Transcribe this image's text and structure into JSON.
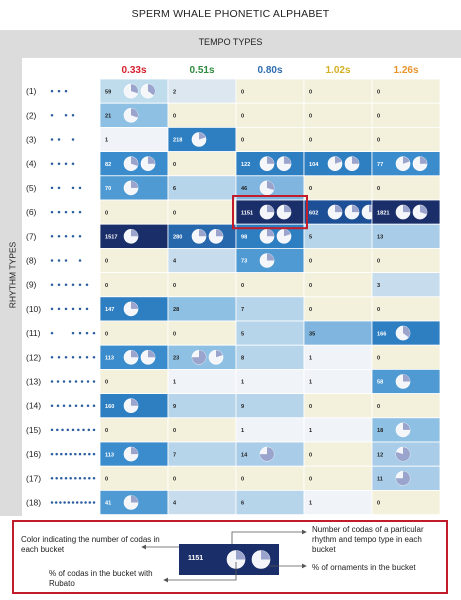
{
  "page": {
    "title": "SPERM WHALE PHONETIC ALPHABET"
  },
  "colors": {
    "dark_navy": "#1a2f6a",
    "highlight_border": "#c21c2a",
    "pale_cell": "#f3f1dc"
  },
  "chart_data": {
    "type": "heatmap",
    "title": "SPERM WHALE PHONETIC ALPHABET",
    "xlabel": "TEMPO TYPES",
    "ylabel": "RHYTHM TYPES",
    "columns": [
      {
        "label": "0.33s",
        "color": "#d4202c"
      },
      {
        "label": "0.51s",
        "color": "#2e8a3d"
      },
      {
        "label": "0.80s",
        "color": "#2f6cb0"
      },
      {
        "label": "1.02s",
        "color": "#d4b023"
      },
      {
        "label": "1.26s",
        "color": "#e8932c"
      }
    ],
    "rows": [
      {
        "label": "(1)",
        "dots": 3,
        "gaps": [
          1,
          1
        ]
      },
      {
        "label": "(2)",
        "dots": 3,
        "gaps": [
          2,
          1
        ]
      },
      {
        "label": "(3)",
        "dots": 3,
        "gaps": [
          1,
          2
        ]
      },
      {
        "label": "(4)",
        "dots": 4,
        "gaps": [
          1,
          1,
          1
        ]
      },
      {
        "label": "(5)",
        "dots": 4,
        "gaps": [
          1,
          2,
          1
        ]
      },
      {
        "label": "(6)",
        "dots": 5,
        "gaps": [
          1,
          1,
          1,
          1
        ]
      },
      {
        "label": "(7)",
        "dots": 5,
        "gaps": [
          1,
          1,
          1,
          1
        ]
      },
      {
        "label": "(8)",
        "dots": 4,
        "gaps": [
          1,
          1,
          2
        ]
      },
      {
        "label": "(9)",
        "dots": 6,
        "gaps": [
          1,
          1,
          1,
          1,
          1
        ]
      },
      {
        "label": "(10)",
        "dots": 6,
        "gaps": [
          1,
          1,
          1,
          1,
          1
        ]
      },
      {
        "label": "(11)",
        "dots": 5,
        "gaps": [
          3,
          1,
          1,
          1
        ]
      },
      {
        "label": "(12)",
        "dots": 7,
        "gaps": [
          1,
          1,
          1,
          1,
          1,
          1
        ]
      },
      {
        "label": "(13)",
        "dots": 8,
        "gaps": [
          1,
          1,
          1,
          1,
          1,
          1,
          1
        ]
      },
      {
        "label": "(14)",
        "dots": 8,
        "gaps": [
          1,
          1,
          1,
          1,
          1,
          1,
          1
        ]
      },
      {
        "label": "(15)",
        "dots": 9,
        "gaps": [
          1,
          1,
          1,
          1,
          1,
          1,
          1,
          1
        ]
      },
      {
        "label": "(16)",
        "dots": 10,
        "gaps": [
          1,
          1,
          1,
          1,
          1,
          1,
          1,
          1,
          1
        ]
      },
      {
        "label": "(17)",
        "dots": 10,
        "gaps": [
          1,
          1,
          1,
          1,
          1,
          1,
          1,
          1,
          1
        ]
      },
      {
        "label": "(18)",
        "dots": 11,
        "gaps": [
          1,
          1,
          1,
          1,
          1,
          1,
          1,
          1,
          1,
          1
        ]
      }
    ],
    "cells": [
      [
        {
          "v": 59,
          "c": "#bfdced",
          "p": [
            0.3,
            0.35
          ]
        },
        {
          "v": 2,
          "c": "#dce7f0"
        },
        {
          "v": 0,
          "c": "#f3f1dc"
        },
        {
          "v": 0,
          "c": "#f3f1dc"
        },
        {
          "v": 0,
          "c": "#f3f1dc"
        }
      ],
      [
        {
          "v": 21,
          "c": "#8ec0e3",
          "p": [
            0.3
          ]
        },
        {
          "v": 0,
          "c": "#f3f1dc"
        },
        {
          "v": 0,
          "c": "#f3f1dc"
        },
        {
          "v": 0,
          "c": "#f3f1dc"
        },
        {
          "v": 0,
          "c": "#f3f1dc"
        }
      ],
      [
        {
          "v": 1,
          "c": "#f0f4f8"
        },
        {
          "v": 218,
          "c": "#2e7fc2",
          "p": [
            0.2
          ]
        },
        {
          "v": 0,
          "c": "#f3f1dc"
        },
        {
          "v": 0,
          "c": "#f3f1dc"
        },
        {
          "v": 0,
          "c": "#f3f1dc"
        }
      ],
      [
        {
          "v": 82,
          "c": "#3b8ccc",
          "p": [
            0.3,
            0.25
          ]
        },
        {
          "v": 0,
          "c": "#f3f1dc"
        },
        {
          "v": 122,
          "c": "#2e7fc2",
          "p": [
            0.25,
            0.25
          ]
        },
        {
          "v": 104,
          "c": "#2e7fc2",
          "p": [
            0.2,
            0.25
          ]
        },
        {
          "v": 77,
          "c": "#3b8ccc",
          "p": [
            0.2,
            0.25
          ]
        }
      ],
      [
        {
          "v": 70,
          "c": "#4f9ad3",
          "p": [
            0.25
          ]
        },
        {
          "v": 6,
          "c": "#b6d4ea"
        },
        {
          "v": 46,
          "c": "#7fb5df",
          "p": [
            0.3
          ]
        },
        {
          "v": 0,
          "c": "#f3f1dc"
        },
        {
          "v": 0,
          "c": "#f3f1dc"
        }
      ],
      [
        {
          "v": 0,
          "c": "#f3f1dc"
        },
        {
          "v": 0,
          "c": "#f3f1dc"
        },
        {
          "v": 1151,
          "c": "#1a2f6a",
          "p": [
            0.25,
            0.25
          ]
        },
        {
          "v": 602,
          "c": "#1d4f96",
          "p": [
            0.25,
            0.25,
            0.25
          ]
        },
        {
          "v": 1821,
          "c": "#1a2f6a",
          "p": [
            0.25,
            0.3
          ]
        }
      ],
      [
        {
          "v": 1517,
          "c": "#1a2f6a",
          "p": [
            0.25
          ]
        },
        {
          "v": 280,
          "c": "#2768ad",
          "p": [
            0.25,
            0.25
          ]
        },
        {
          "v": 98,
          "c": "#2e7fc2",
          "p": [
            0.25,
            0.2
          ]
        },
        {
          "v": 5,
          "c": "#b6d4ea"
        },
        {
          "v": 13,
          "c": "#a9cde8"
        }
      ],
      [
        {
          "v": 0,
          "c": "#f3f1dc"
        },
        {
          "v": 4,
          "c": "#c7dcec"
        },
        {
          "v": 73,
          "c": "#4f9ad3",
          "p": [
            0.25
          ]
        },
        {
          "v": 0,
          "c": "#f3f1dc"
        },
        {
          "v": 0,
          "c": "#f3f1dc"
        }
      ],
      [
        {
          "v": 0,
          "c": "#f3f1dc"
        },
        {
          "v": 0,
          "c": "#f3f1dc"
        },
        {
          "v": 0,
          "c": "#f3f1dc"
        },
        {
          "v": 0,
          "c": "#f3f1dc"
        },
        {
          "v": 3,
          "c": "#c7dcec"
        }
      ],
      [
        {
          "v": 147,
          "c": "#2e7fc2",
          "p": [
            0.25
          ]
        },
        {
          "v": 28,
          "c": "#8ec0e3"
        },
        {
          "v": 7,
          "c": "#b6d4ea"
        },
        {
          "v": 0,
          "c": "#f3f1dc"
        },
        {
          "v": 0,
          "c": "#f3f1dc"
        }
      ],
      [
        {
          "v": 0,
          "c": "#f3f1dc"
        },
        {
          "v": 0,
          "c": "#f3f1dc"
        },
        {
          "v": 5,
          "c": "#b6d4ea"
        },
        {
          "v": 35,
          "c": "#7fb5df"
        },
        {
          "v": 166,
          "c": "#2e7fc2",
          "p": [
            0.35
          ]
        }
      ],
      [
        {
          "v": 113,
          "c": "#3b8ccc",
          "p": [
            0.25,
            0.25
          ]
        },
        {
          "v": 23,
          "c": "#8ec0e3",
          "p": [
            0.75,
            0.2
          ]
        },
        {
          "v": 8,
          "c": "#b6d4ea"
        },
        {
          "v": 1,
          "c": "#f0f4f8"
        },
        {
          "v": 0,
          "c": "#f3f1dc"
        }
      ],
      [
        {
          "v": 0,
          "c": "#f3f1dc"
        },
        {
          "v": 1,
          "c": "#f0f4f8"
        },
        {
          "v": 1,
          "c": "#f0f4f8"
        },
        {
          "v": 1,
          "c": "#f0f4f8"
        },
        {
          "v": 58,
          "c": "#4f9ad3",
          "p": [
            0.25
          ]
        }
      ],
      [
        {
          "v": 160,
          "c": "#2e7fc2",
          "p": [
            0.25
          ]
        },
        {
          "v": 9,
          "c": "#b6d4ea"
        },
        {
          "v": 9,
          "c": "#b6d4ea"
        },
        {
          "v": 0,
          "c": "#f3f1dc"
        },
        {
          "v": 0,
          "c": "#f3f1dc"
        }
      ],
      [
        {
          "v": 0,
          "c": "#f3f1dc"
        },
        {
          "v": 0,
          "c": "#f3f1dc"
        },
        {
          "v": 1,
          "c": "#f0f4f8"
        },
        {
          "v": 1,
          "c": "#f0f4f8"
        },
        {
          "v": 18,
          "c": "#8ec0e3",
          "p": [
            0.25
          ]
        }
      ],
      [
        {
          "v": 113,
          "c": "#3b8ccc",
          "p": [
            0.25
          ]
        },
        {
          "v": 7,
          "c": "#b6d4ea"
        },
        {
          "v": 14,
          "c": "#a9cde8",
          "p": [
            0.75
          ]
        },
        {
          "v": 0,
          "c": "#f3f1dc"
        },
        {
          "v": 12,
          "c": "#a9cde8",
          "p": [
            0.8
          ]
        }
      ],
      [
        {
          "v": 0,
          "c": "#f3f1dc"
        },
        {
          "v": 0,
          "c": "#f3f1dc"
        },
        {
          "v": 0,
          "c": "#f3f1dc"
        },
        {
          "v": 0,
          "c": "#f3f1dc"
        },
        {
          "v": 11,
          "c": "#a9cde8",
          "p": [
            0.75
          ]
        }
      ],
      [
        {
          "v": 41,
          "c": "#4f9ad3",
          "p": [
            0.25
          ]
        },
        {
          "v": 4,
          "c": "#c7dcec"
        },
        {
          "v": 6,
          "c": "#b6d4ea"
        },
        {
          "v": 1,
          "c": "#f0f4f8"
        },
        {
          "v": 0,
          "c": "#f3f1dc"
        }
      ]
    ],
    "highlight": {
      "row": 5,
      "col": 2
    }
  },
  "legend": {
    "color_label": "Color indicating the number of codas in each bucket",
    "count_label": "Number of codas of a particular rhythm and tempo type in each bucket",
    "rubato_label": "% of codas in the bucket with Rubato",
    "ornament_label": "% of ornaments in the bucket",
    "example_value": "1151"
  }
}
